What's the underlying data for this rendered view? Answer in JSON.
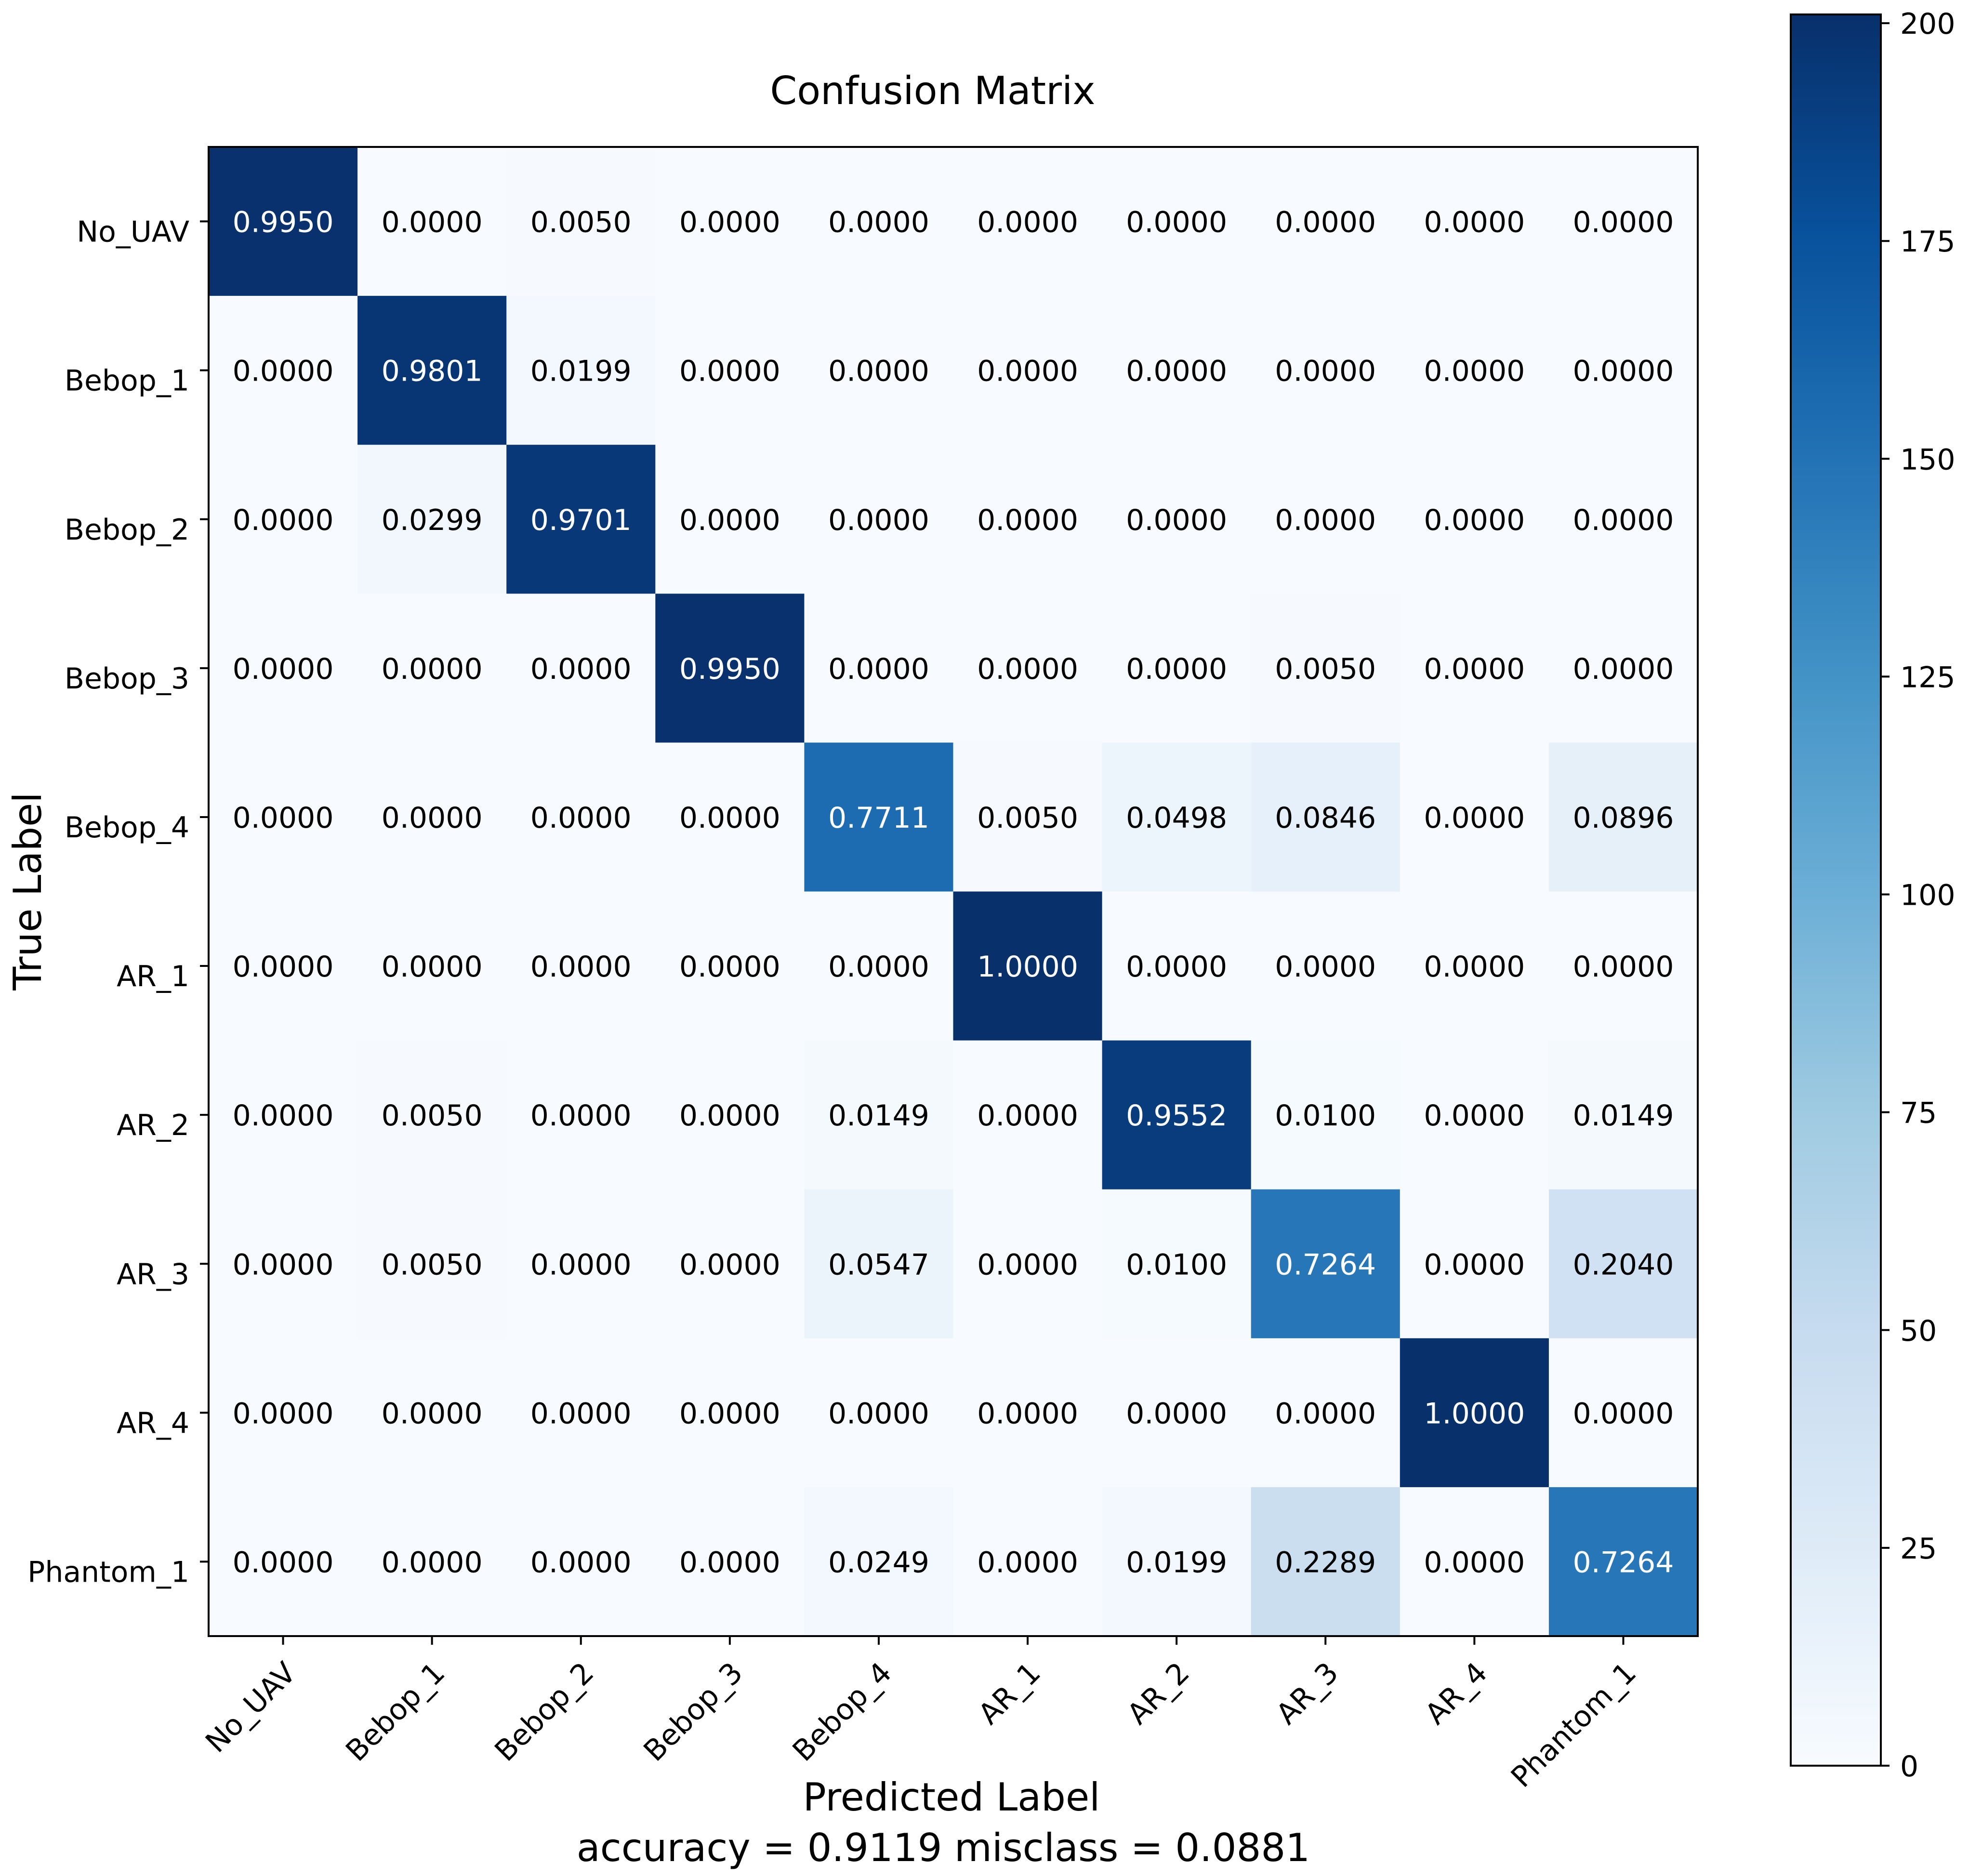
{
  "chart_data": {
    "type": "heatmap",
    "title": "Confusion Matrix",
    "xlabel": "Predicted Label",
    "ylabel": "True Label",
    "footer": "accuracy = 0.9119 misclass = 0.0881",
    "x_categories": [
      "No_UAV",
      "Bebop_1",
      "Bebop_2",
      "Bebop_3",
      "Bebop_4",
      "AR_1",
      "AR_2",
      "AR_3",
      "AR_4",
      "Phantom_1"
    ],
    "y_categories": [
      "No_UAV",
      "Bebop_1",
      "Bebop_2",
      "Bebop_3",
      "Bebop_4",
      "AR_1",
      "AR_2",
      "AR_3",
      "AR_4",
      "Phantom_1"
    ],
    "normalized_values": [
      [
        0.995,
        0.0,
        0.005,
        0.0,
        0.0,
        0.0,
        0.0,
        0.0,
        0.0,
        0.0
      ],
      [
        0.0,
        0.9801,
        0.0199,
        0.0,
        0.0,
        0.0,
        0.0,
        0.0,
        0.0,
        0.0
      ],
      [
        0.0,
        0.0299,
        0.9701,
        0.0,
        0.0,
        0.0,
        0.0,
        0.0,
        0.0,
        0.0
      ],
      [
        0.0,
        0.0,
        0.0,
        0.995,
        0.0,
        0.0,
        0.0,
        0.005,
        0.0,
        0.0
      ],
      [
        0.0,
        0.0,
        0.0,
        0.0,
        0.7711,
        0.005,
        0.0498,
        0.0846,
        0.0,
        0.0896
      ],
      [
        0.0,
        0.0,
        0.0,
        0.0,
        0.0,
        1.0,
        0.0,
        0.0,
        0.0,
        0.0
      ],
      [
        0.0,
        0.005,
        0.0,
        0.0,
        0.0149,
        0.0,
        0.9552,
        0.01,
        0.0,
        0.0149
      ],
      [
        0.0,
        0.005,
        0.0,
        0.0,
        0.0547,
        0.0,
        0.01,
        0.7264,
        0.0,
        0.204
      ],
      [
        0.0,
        0.0,
        0.0,
        0.0,
        0.0,
        0.0,
        0.0,
        0.0,
        1.0,
        0.0
      ],
      [
        0.0,
        0.0,
        0.0,
        0.0,
        0.0249,
        0.0,
        0.0199,
        0.2289,
        0.0,
        0.7264
      ]
    ],
    "color_values": [
      [
        200,
        0,
        1,
        0,
        0,
        0,
        0,
        0,
        0,
        0
      ],
      [
        0,
        197,
        4,
        0,
        0,
        0,
        0,
        0,
        0,
        0
      ],
      [
        0,
        6,
        195,
        0,
        0,
        0,
        0,
        0,
        0,
        0
      ],
      [
        0,
        0,
        0,
        200,
        0,
        0,
        0,
        1,
        0,
        0
      ],
      [
        0,
        0,
        0,
        0,
        155,
        1,
        10,
        17,
        0,
        18
      ],
      [
        0,
        0,
        0,
        0,
        0,
        201,
        0,
        0,
        0,
        0
      ],
      [
        0,
        1,
        0,
        0,
        3,
        0,
        192,
        2,
        0,
        3
      ],
      [
        0,
        1,
        0,
        0,
        11,
        0,
        2,
        146,
        0,
        41
      ],
      [
        0,
        0,
        0,
        0,
        0,
        0,
        0,
        0,
        201,
        0
      ],
      [
        0,
        0,
        0,
        0,
        5,
        0,
        4,
        46,
        0,
        146
      ]
    ],
    "colorbar": {
      "cmap": "Blues",
      "vmin": 0,
      "vmax": 201,
      "ticks": [
        0,
        25,
        50,
        75,
        100,
        125,
        150,
        175,
        200
      ],
      "tick_labels": [
        "0",
        "25",
        "50",
        "75",
        "100",
        "125",
        "150",
        "175",
        "200"
      ]
    },
    "text_threshold": 100.5,
    "text_colors": {
      "light": "#ffffff",
      "dark": "#000000"
    }
  }
}
